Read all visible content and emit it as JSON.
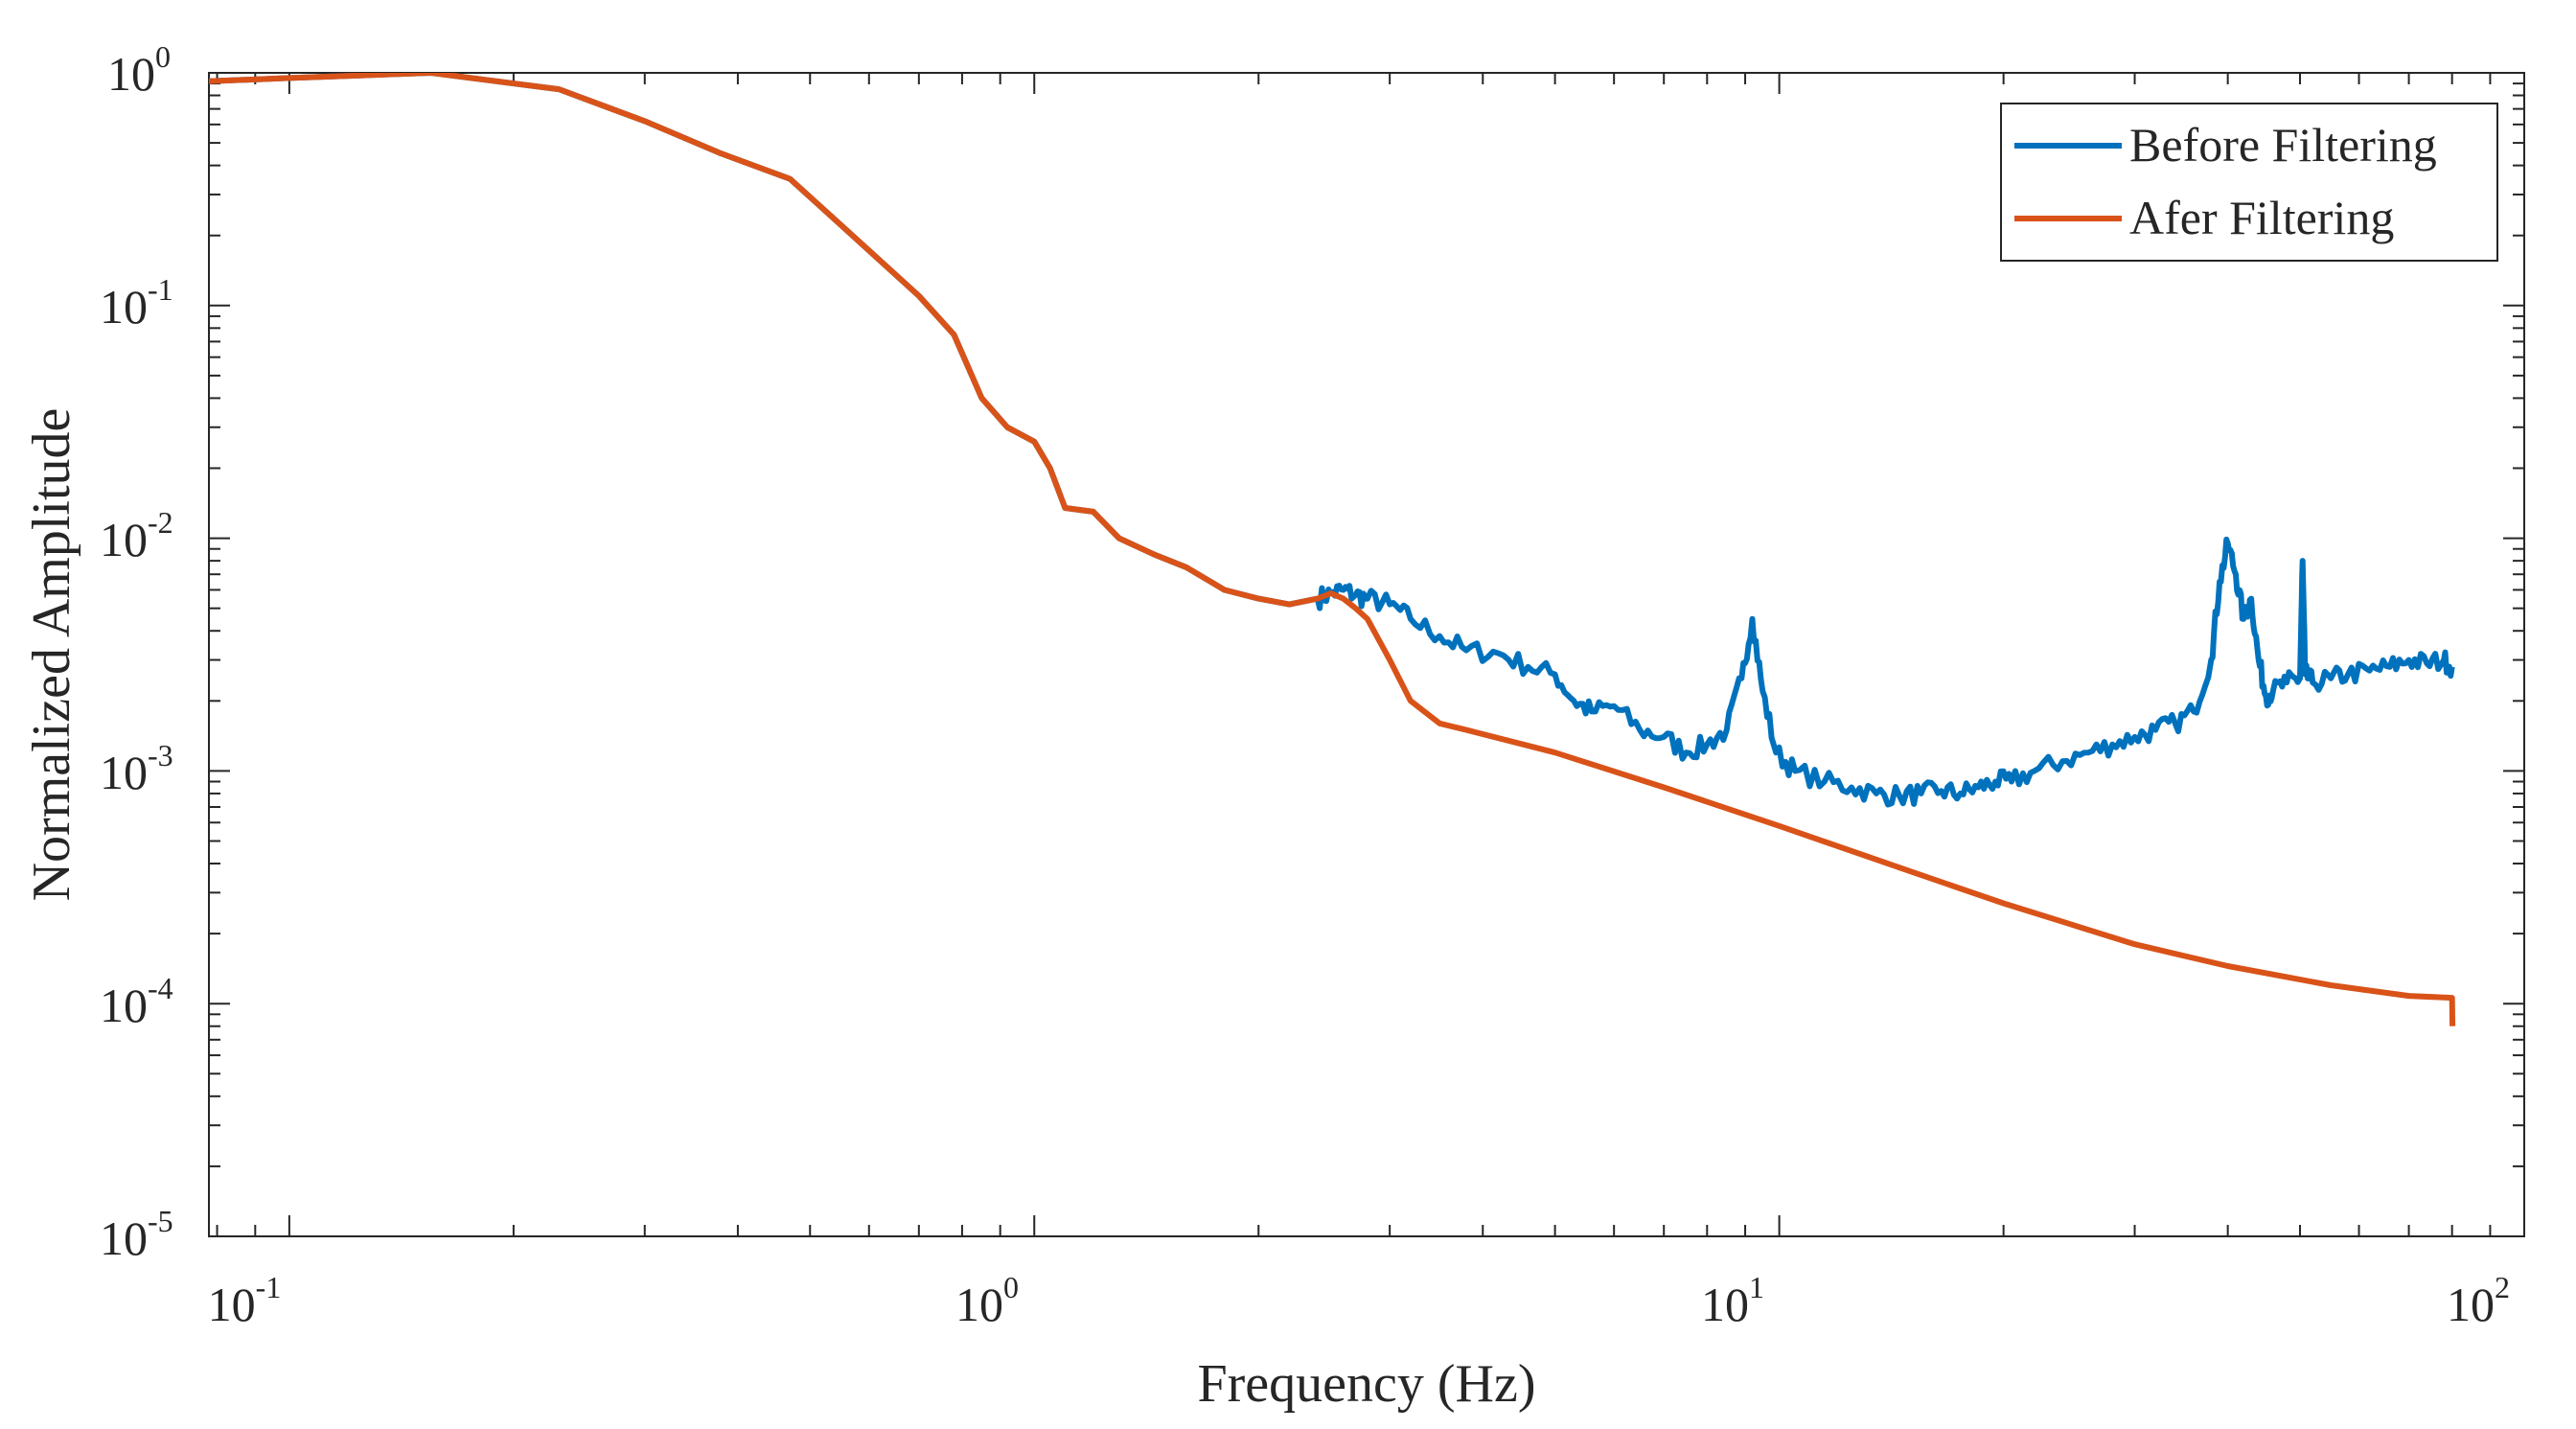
{
  "chart_data": {
    "type": "line",
    "title": "",
    "xlabel": "Frequency (Hz)",
    "ylabel": "Normalized Amplitude",
    "xscale": "log",
    "yscale": "log",
    "xlim": [
      0.078,
      100
    ],
    "ylim": [
      1e-05,
      1
    ],
    "grid": false,
    "legend_position": "top-right",
    "x_ticks": [
      {
        "base": "10",
        "exp": "-1",
        "value": 0.1
      },
      {
        "base": "10",
        "exp": "0",
        "value": 1
      },
      {
        "base": "10",
        "exp": "1",
        "value": 10
      },
      {
        "base": "10",
        "exp": "2",
        "value": 100
      }
    ],
    "y_ticks": [
      {
        "base": "10",
        "exp": "0",
        "value": 1
      },
      {
        "base": "10",
        "exp": "-1",
        "value": 0.1
      },
      {
        "base": "10",
        "exp": "-2",
        "value": 0.01
      },
      {
        "base": "10",
        "exp": "-3",
        "value": 0.001
      },
      {
        "base": "10",
        "exp": "-4",
        "value": 0.0001
      },
      {
        "base": "10",
        "exp": "-5",
        "value": 1e-05
      }
    ],
    "series": [
      {
        "name": "Before Filtering",
        "color": "#0072BD",
        "x": [
          0.078,
          0.1,
          0.155,
          0.23,
          0.3,
          0.38,
          0.47,
          0.57,
          0.7,
          0.78,
          0.85,
          0.92,
          1.0,
          1.05,
          1.1,
          1.2,
          1.3,
          1.45,
          1.6,
          1.8,
          2.0,
          2.2,
          2.4,
          2.5,
          2.6,
          2.7,
          2.8,
          3.0,
          3.2,
          3.5,
          3.8,
          4.2,
          4.6,
          5.0,
          5.3,
          5.6,
          6.0,
          6.5,
          7.0,
          7.5,
          8.0,
          8.5,
          8.9,
          9.2,
          9.5,
          9.9,
          10.5,
          11.5,
          12.5,
          13.5,
          14.5,
          15.5,
          16.5,
          17.5,
          18.5,
          19.5,
          20.5,
          22.0,
          24.0,
          26.0,
          28.0,
          30.0,
          32.0,
          34.0,
          36.0,
          38.0,
          39.0,
          40.0,
          41.0,
          42.0,
          43.0,
          44.0,
          45.0,
          46.0,
          48.0,
          50.0,
          50.4,
          50.8,
          52.0,
          55.0,
          58.0,
          62.0,
          66.0,
          70.0,
          74.0,
          78.0,
          80.0
        ],
        "values": [
          0.92,
          0.95,
          1.0,
          0.85,
          0.62,
          0.45,
          0.35,
          0.2,
          0.11,
          0.075,
          0.04,
          0.03,
          0.026,
          0.02,
          0.0135,
          0.013,
          0.01,
          0.0085,
          0.0075,
          0.006,
          0.0055,
          0.0052,
          0.0055,
          0.0058,
          0.006,
          0.0057,
          0.0055,
          0.0052,
          0.0045,
          0.0038,
          0.0033,
          0.0032,
          0.0028,
          0.0026,
          0.002,
          0.0018,
          0.0019,
          0.0015,
          0.0014,
          0.0012,
          0.0013,
          0.0015,
          0.0025,
          0.0045,
          0.0022,
          0.0012,
          0.001,
          0.0009,
          0.00085,
          0.0008,
          0.00078,
          0.0008,
          0.00082,
          0.0008,
          0.00085,
          0.0009,
          0.0009,
          0.001,
          0.0011,
          0.0012,
          0.0013,
          0.0014,
          0.0015,
          0.0016,
          0.0018,
          0.003,
          0.0065,
          0.0095,
          0.007,
          0.0045,
          0.0055,
          0.003,
          0.0021,
          0.0022,
          0.0024,
          0.0025,
          0.008,
          0.0026,
          0.0024,
          0.0025,
          0.0026,
          0.0027,
          0.0028,
          0.003,
          0.0029,
          0.003,
          0.0028
        ]
      },
      {
        "name": "Afer Filtering",
        "color": "#D95319",
        "x": [
          0.078,
          0.1,
          0.155,
          0.23,
          0.3,
          0.38,
          0.47,
          0.57,
          0.7,
          0.78,
          0.85,
          0.92,
          1.0,
          1.05,
          1.1,
          1.2,
          1.3,
          1.45,
          1.6,
          1.8,
          2.0,
          2.2,
          2.4,
          2.5,
          2.6,
          2.7,
          2.8,
          3.0,
          3.2,
          3.5,
          3.8,
          5.0,
          7.0,
          10.0,
          15.0,
          20.0,
          30.0,
          40.0,
          55.0,
          70.0,
          80.0,
          80.1
        ],
        "values": [
          0.92,
          0.95,
          1.0,
          0.85,
          0.62,
          0.45,
          0.35,
          0.2,
          0.11,
          0.075,
          0.04,
          0.03,
          0.026,
          0.02,
          0.0135,
          0.013,
          0.01,
          0.0085,
          0.0075,
          0.006,
          0.0055,
          0.0052,
          0.0055,
          0.0058,
          0.0055,
          0.005,
          0.0045,
          0.003,
          0.002,
          0.0016,
          0.0015,
          0.0012,
          0.00085,
          0.00058,
          0.00037,
          0.00027,
          0.00018,
          0.000145,
          0.00012,
          0.000108,
          0.000106,
          8e-05
        ]
      }
    ]
  }
}
